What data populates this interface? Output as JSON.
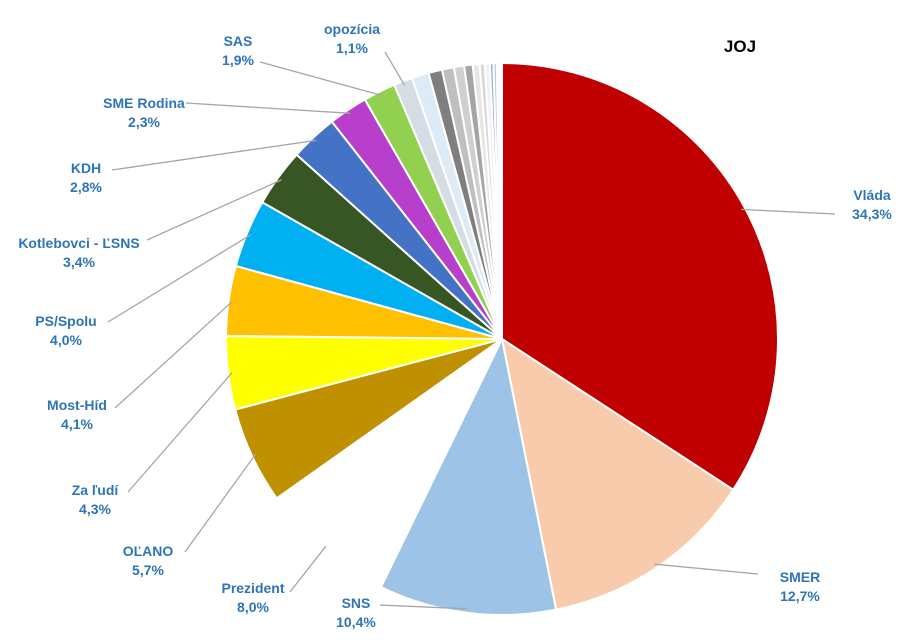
{
  "chart_data": {
    "type": "pie",
    "title": "JOJ",
    "slices": [
      {
        "name": "Vláda",
        "value": 34.3,
        "label": "34,3%",
        "color": "#C00000"
      },
      {
        "name": "SMER",
        "value": 12.7,
        "label": "12,7%",
        "color": "#F8CBAD"
      },
      {
        "name": "SNS",
        "value": 10.4,
        "label": "10,4%",
        "color": "#9DC3E6"
      },
      {
        "name": "Prezident",
        "value": 8.0,
        "label": "8,0%",
        "color": "#FFFFFF"
      },
      {
        "name": "OĽANO",
        "value": 5.7,
        "label": "5,7%",
        "color": "#BF9000"
      },
      {
        "name": "Za ľudí",
        "value": 4.3,
        "label": "4,3%",
        "color": "#FFFF00"
      },
      {
        "name": "Most-Híd",
        "value": 4.1,
        "label": "4,1%",
        "color": "#FFC000"
      },
      {
        "name": "PS/Spolu",
        "value": 4.0,
        "label": "4,0%",
        "color": "#00B0F0"
      },
      {
        "name": "Kotlebovci - ĽSNS",
        "value": 3.4,
        "label": "3,4%",
        "color": "#375623"
      },
      {
        "name": "KDH",
        "value": 2.8,
        "label": "2,8%",
        "color": "#4472C4"
      },
      {
        "name": "SME Rodina",
        "value": 2.3,
        "label": "2,3%",
        "color": "#B73FCC"
      },
      {
        "name": "SAS",
        "value": 1.9,
        "label": "1,9%",
        "color": "#92D050"
      },
      {
        "name": "opozícia",
        "value": 1.1,
        "label": "1,1%",
        "color": "#D6DCE4"
      },
      {
        "name": "",
        "value": 1.0,
        "label": "",
        "color": "#DDEBF7"
      },
      {
        "name": "",
        "value": 0.8,
        "label": "",
        "color": "#7F7F7F"
      },
      {
        "name": "",
        "value": 0.7,
        "label": "",
        "color": "#BFBFBF"
      },
      {
        "name": "",
        "value": 0.6,
        "label": "",
        "color": "#D0CECE"
      },
      {
        "name": "",
        "value": 0.5,
        "label": "",
        "color": "#A5A5A5"
      },
      {
        "name": "",
        "value": 0.4,
        "label": "",
        "color": "#E7E6E6"
      },
      {
        "name": "",
        "value": 0.3,
        "label": "",
        "color": "#D9D9D9"
      },
      {
        "name": "",
        "value": 0.3,
        "label": "",
        "color": "#F2F2F2"
      },
      {
        "name": "",
        "value": 0.2,
        "label": "",
        "color": "#8EA9DB"
      },
      {
        "name": "",
        "value": 0.2,
        "label": "",
        "color": "#C9C9C9"
      },
      {
        "name": "",
        "value": 0.1,
        "label": "",
        "color": "#548235"
      },
      {
        "name": "",
        "value": 0.1,
        "label": "",
        "color": "#595959"
      },
      {
        "name": "",
        "value": 0.1,
        "label": "",
        "color": "#ED7D31"
      }
    ],
    "label_color": "#2E75B6",
    "title_color": "#000000"
  }
}
